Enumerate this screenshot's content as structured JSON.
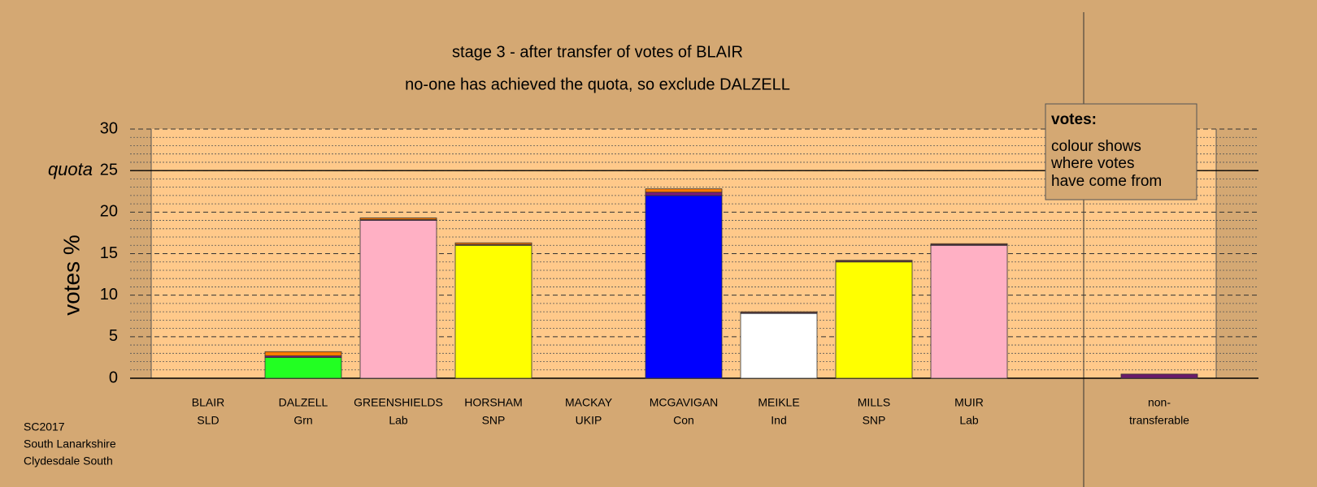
{
  "chart_data": {
    "type": "bar",
    "title": "stage 3 - after transfer of votes of BLAIR",
    "subtitle": "no-one has achieved the quota, so exclude DALZELL",
    "y_label": "votes %",
    "quota": 25,
    "quota_label": "quota",
    "categories": [
      "BLAIR",
      "DALZELL",
      "GREENSHIELDS",
      "HORSHAM",
      "MACKAY",
      "MCGAVIGAN",
      "MEIKLE",
      "MILLS",
      "MUIR"
    ],
    "parties": [
      "SLD",
      "Grn",
      "Lab",
      "SNP",
      "UKIP",
      "Con",
      "Ind",
      "SNP",
      "Lab"
    ],
    "series": [
      {
        "color": "#22ff22",
        "values": [
          0,
          2.5,
          0,
          0,
          0,
          0,
          0,
          0,
          0
        ]
      },
      {
        "color": "#ffb0c4",
        "values": [
          0,
          0,
          19,
          0,
          0,
          0,
          0,
          0,
          16
        ]
      },
      {
        "color": "#ffff00",
        "values": [
          0,
          0,
          0,
          16,
          0,
          0,
          0,
          14,
          0
        ]
      },
      {
        "color": "#0000ff",
        "values": [
          0,
          0,
          0,
          0,
          0,
          22,
          0,
          0,
          0
        ]
      },
      {
        "color": "#ffffff",
        "values": [
          0,
          0,
          0,
          0,
          0,
          0,
          7.8,
          0,
          0
        ]
      },
      {
        "color": "#7a1a7a",
        "values": [
          0,
          0.2,
          0.1,
          0.1,
          0,
          0.4,
          0.1,
          0.1,
          0.1
        ]
      },
      {
        "color": "#ff7a00",
        "values": [
          0,
          0.5,
          0.2,
          0.2,
          0,
          0.4,
          0.1,
          0.1,
          0.1
        ]
      }
    ],
    "nontransferable": {
      "label": [
        "non-",
        "transferable"
      ],
      "value": 0.5,
      "color": "#6a1a6a"
    },
    "ylim": [
      0,
      30
    ],
    "yticks": [
      0,
      5,
      10,
      15,
      20,
      25,
      30
    ],
    "minor_yticks": [
      1,
      2,
      3,
      4,
      6,
      7,
      8,
      9,
      11,
      12,
      13,
      14,
      16,
      17,
      18,
      19,
      21,
      22,
      23,
      24,
      26,
      27,
      28,
      29
    ],
    "legend": {
      "title": "votes:",
      "lines": [
        "colour shows",
        "where votes",
        "have come from"
      ]
    },
    "footer": [
      "SC2017",
      "South Lanarkshire",
      "Clydesdale South"
    ]
  }
}
